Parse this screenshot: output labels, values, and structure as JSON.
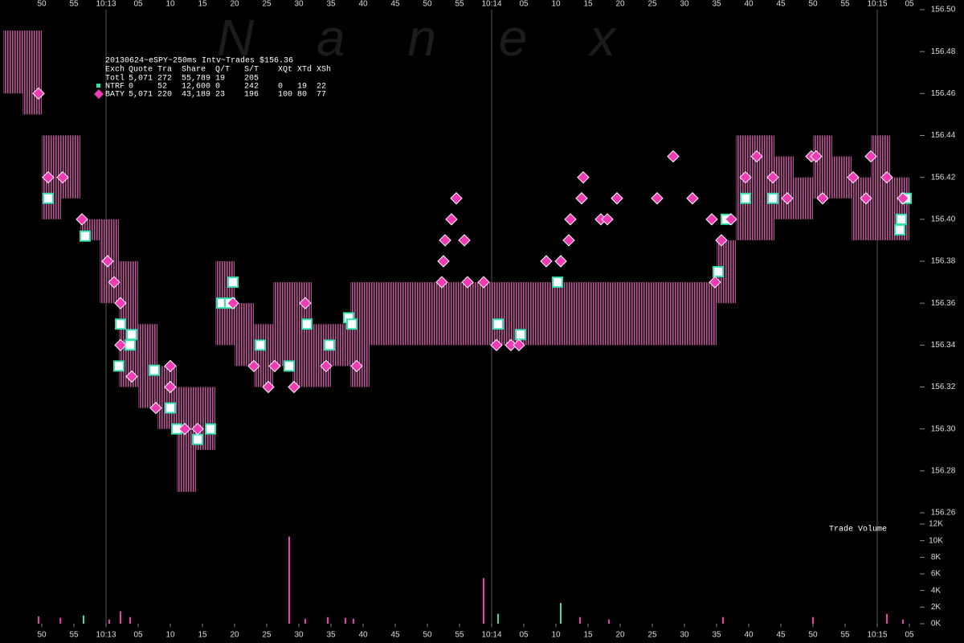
{
  "chart_data": [
    {
      "type": "scatter",
      "watermark": "N a n e x",
      "stats": {
        "title": "20130624~eSPY~250ms Intv~Trades $156.36",
        "columns": [
          "Exch",
          "Quote",
          "Tra",
          "Share",
          "Q/T",
          "S/T",
          "XQt",
          "XTd",
          "XSh"
        ],
        "total": [
          "Totl",
          "5,071",
          "272",
          "55,789",
          "19",
          "205"
        ]
      },
      "xlim": [
        43.5,
        186.625
      ],
      "xticks": [
        50,
        55,
        {
          "value": 60,
          "label": "10:13"
        },
        {
          "value": 65,
          "label": "05"
        },
        {
          "value": 70,
          "label": "10"
        },
        {
          "value": 75,
          "label": "15"
        },
        {
          "value": 80,
          "label": "20"
        },
        {
          "value": 85,
          "label": "25"
        },
        {
          "value": 90,
          "label": "30"
        },
        {
          "value": 95,
          "label": "35"
        },
        {
          "value": 100,
          "label": "40"
        },
        {
          "value": 105,
          "label": "45"
        },
        {
          "value": 110,
          "label": "50"
        },
        {
          "value": 115,
          "label": "55"
        },
        {
          "value": 120,
          "label": "10:14"
        },
        {
          "value": 125,
          "label": "05"
        },
        {
          "value": 130,
          "label": "10"
        },
        {
          "value": 135,
          "label": "15"
        },
        {
          "value": 140,
          "label": "20"
        },
        {
          "value": 145,
          "label": "25"
        },
        {
          "value": 150,
          "label": "30"
        },
        {
          "value": 155,
          "label": "35"
        },
        {
          "value": 160,
          "label": "40"
        },
        {
          "value": 165,
          "label": "45"
        },
        {
          "value": 170,
          "label": "50"
        },
        {
          "value": 175,
          "label": "55"
        },
        {
          "value": 180,
          "label": "10:15"
        },
        {
          "value": 185,
          "label": "05"
        }
      ],
      "x_grid": [
        60,
        120,
        180
      ],
      "ylim": [
        156.2554,
        156.5046
      ],
      "yticks": [
        156.26,
        156.28,
        {
          "value": 156.3,
          "label": "156.30"
        },
        156.32,
        156.34,
        156.36,
        156.38,
        {
          "value": 156.4,
          "label": "156.40"
        },
        156.42,
        156.44,
        156.46,
        156.48,
        {
          "value": 156.5,
          "label": "156.50"
        }
      ],
      "ranges": {
        "color": "#c0509a",
        "width": 3,
        "x": [
          44,
          47,
          50,
          53,
          56,
          59,
          62,
          65,
          68,
          71,
          74,
          77,
          80,
          83,
          86,
          89,
          92,
          95,
          98,
          101,
          104,
          107,
          110,
          113,
          116,
          119,
          122,
          125,
          128,
          131,
          134,
          137,
          140,
          143,
          146,
          149,
          152,
          155,
          158,
          161,
          164,
          167,
          170,
          173,
          176,
          179,
          182
        ],
        "low": [
          156.46,
          156.45,
          156.4,
          156.41,
          156.39,
          156.36,
          156.32,
          156.31,
          156.3,
          156.27,
          156.29,
          156.34,
          156.33,
          156.32,
          156.33,
          156.32,
          156.32,
          156.33,
          156.32,
          156.34,
          156.34,
          156.34,
          156.34,
          156.34,
          156.34,
          156.34,
          156.34,
          156.34,
          156.34,
          156.34,
          156.34,
          156.34,
          156.34,
          156.34,
          156.34,
          156.34,
          156.34,
          156.36,
          156.39,
          156.39,
          156.4,
          156.4,
          156.41,
          156.41,
          156.39,
          156.39,
          156.39
        ],
        "high": [
          156.49,
          156.49,
          156.44,
          156.44,
          156.4,
          156.4,
          156.38,
          156.35,
          156.33,
          156.32,
          156.32,
          156.38,
          156.36,
          156.35,
          156.37,
          156.37,
          156.35,
          156.35,
          156.37,
          156.37,
          156.37,
          156.37,
          156.37,
          156.37,
          156.37,
          156.37,
          156.37,
          156.37,
          156.37,
          156.37,
          156.37,
          156.37,
          156.37,
          156.37,
          156.37,
          156.37,
          156.37,
          156.39,
          156.44,
          156.44,
          156.43,
          156.42,
          156.44,
          156.43,
          156.42,
          156.44,
          156.42
        ]
      },
      "series": [
        {
          "name": "NTRF",
          "marker": "square",
          "color": "#33e0b0",
          "stats": [
            "0",
            "52",
            "12,600",
            "0",
            "242",
            "0",
            "19",
            "22"
          ],
          "x": [
            51,
            56.75,
            62.25,
            63.75,
            64,
            62,
            67.5,
            70,
            71,
            74.25,
            76.25,
            78,
            79.25,
            79.75,
            84,
            88.5,
            91.25,
            94.75,
            97.75,
            98.25,
            121,
            124.5,
            130.25,
            155.25,
            156.5,
            159.5,
            163.75,
            183.5,
            183.75,
            184.5
          ],
          "values": [
            156.41,
            156.392,
            156.35,
            156.34,
            156.345,
            156.33,
            156.328,
            156.31,
            156.3,
            156.295,
            156.3,
            156.36,
            156.36,
            156.37,
            156.34,
            156.33,
            156.35,
            156.34,
            156.353,
            156.35,
            156.35,
            156.345,
            156.37,
            156.375,
            156.4,
            156.41,
            156.41,
            156.395,
            156.4,
            156.41
          ]
        },
        {
          "name": "BATY",
          "marker": "diamond",
          "color": "#f03cb4",
          "stats": [
            "5,071",
            "220",
            "43,189",
            "23",
            "196",
            "100",
            "80",
            "77"
          ],
          "x": [
            49.5,
            51,
            53.25,
            56.25,
            60.25,
            61.25,
            62.25,
            62.25,
            64,
            67.75,
            70,
            70,
            72.25,
            74.25,
            79.75,
            83,
            85.25,
            86.25,
            89.25,
            91,
            94.25,
            99,
            112.25,
            112.5,
            112.75,
            113.75,
            114.5,
            115.75,
            116.25,
            118.75,
            120.75,
            123,
            124.25,
            128.5,
            130.75,
            132,
            132.25,
            134,
            134.25,
            137,
            138,
            139.5,
            145.75,
            148.25,
            151.25,
            154.25,
            154.75,
            155.75,
            157.25,
            159.5,
            161.25,
            163.75,
            166,
            169.75,
            170.5,
            171.5,
            176.25,
            178.25,
            179,
            181.5,
            184
          ],
          "values": [
            156.46,
            156.42,
            156.42,
            156.4,
            156.38,
            156.37,
            156.36,
            156.34,
            156.325,
            156.31,
            156.33,
            156.32,
            156.3,
            156.3,
            156.36,
            156.33,
            156.32,
            156.33,
            156.32,
            156.36,
            156.33,
            156.33,
            156.37,
            156.38,
            156.39,
            156.4,
            156.41,
            156.39,
            156.37,
            156.37,
            156.34,
            156.34,
            156.34,
            156.38,
            156.38,
            156.39,
            156.4,
            156.41,
            156.42,
            156.4,
            156.4,
            156.41,
            156.41,
            156.43,
            156.41,
            156.4,
            156.37,
            156.39,
            156.4,
            156.42,
            156.43,
            156.42,
            156.41,
            156.43,
            156.43,
            156.41,
            156.42,
            156.41,
            156.43,
            156.42,
            156.41
          ]
        }
      ]
    },
    {
      "type": "bar",
      "title": "Trade Volume",
      "ylim": [
        0,
        12000
      ],
      "yticks": [
        {
          "value": 0,
          "label": "0K"
        },
        {
          "value": 2000,
          "label": "2K"
        },
        {
          "value": 4000,
          "label": "4K"
        },
        {
          "value": 6000,
          "label": "6K"
        },
        {
          "value": 8000,
          "label": "8K"
        },
        {
          "value": 10000,
          "label": "10K"
        },
        {
          "value": 12000,
          "label": "12K"
        }
      ],
      "x": [
        49.5,
        52.9,
        56.5,
        60.5,
        62.25,
        63.75,
        88.5,
        91,
        94.5,
        97.25,
        98.5,
        118.75,
        121,
        130.75,
        133.75,
        138.25,
        156,
        170,
        181.5,
        184
      ],
      "values": [
        900,
        700,
        1000,
        500,
        1500,
        800,
        10500,
        600,
        800,
        700,
        600,
        5500,
        1200,
        2500,
        800,
        500,
        800,
        800,
        1200,
        500
      ],
      "colors": [
        "#f03cb4",
        "#f03cb4",
        "#33e0b0",
        "#f03cb4",
        "#f03cb4",
        "#f03cb4",
        "#f03cb4",
        "#f03cb4",
        "#f03cb4",
        "#f03cb4",
        "#f03cb4",
        "#f03cb4",
        "#33e0b0",
        "#33e0b0",
        "#f03cb4",
        "#f03cb4",
        "#f03cb4",
        "#f03cb4",
        "#f03cb4",
        "#f03cb4"
      ]
    }
  ]
}
